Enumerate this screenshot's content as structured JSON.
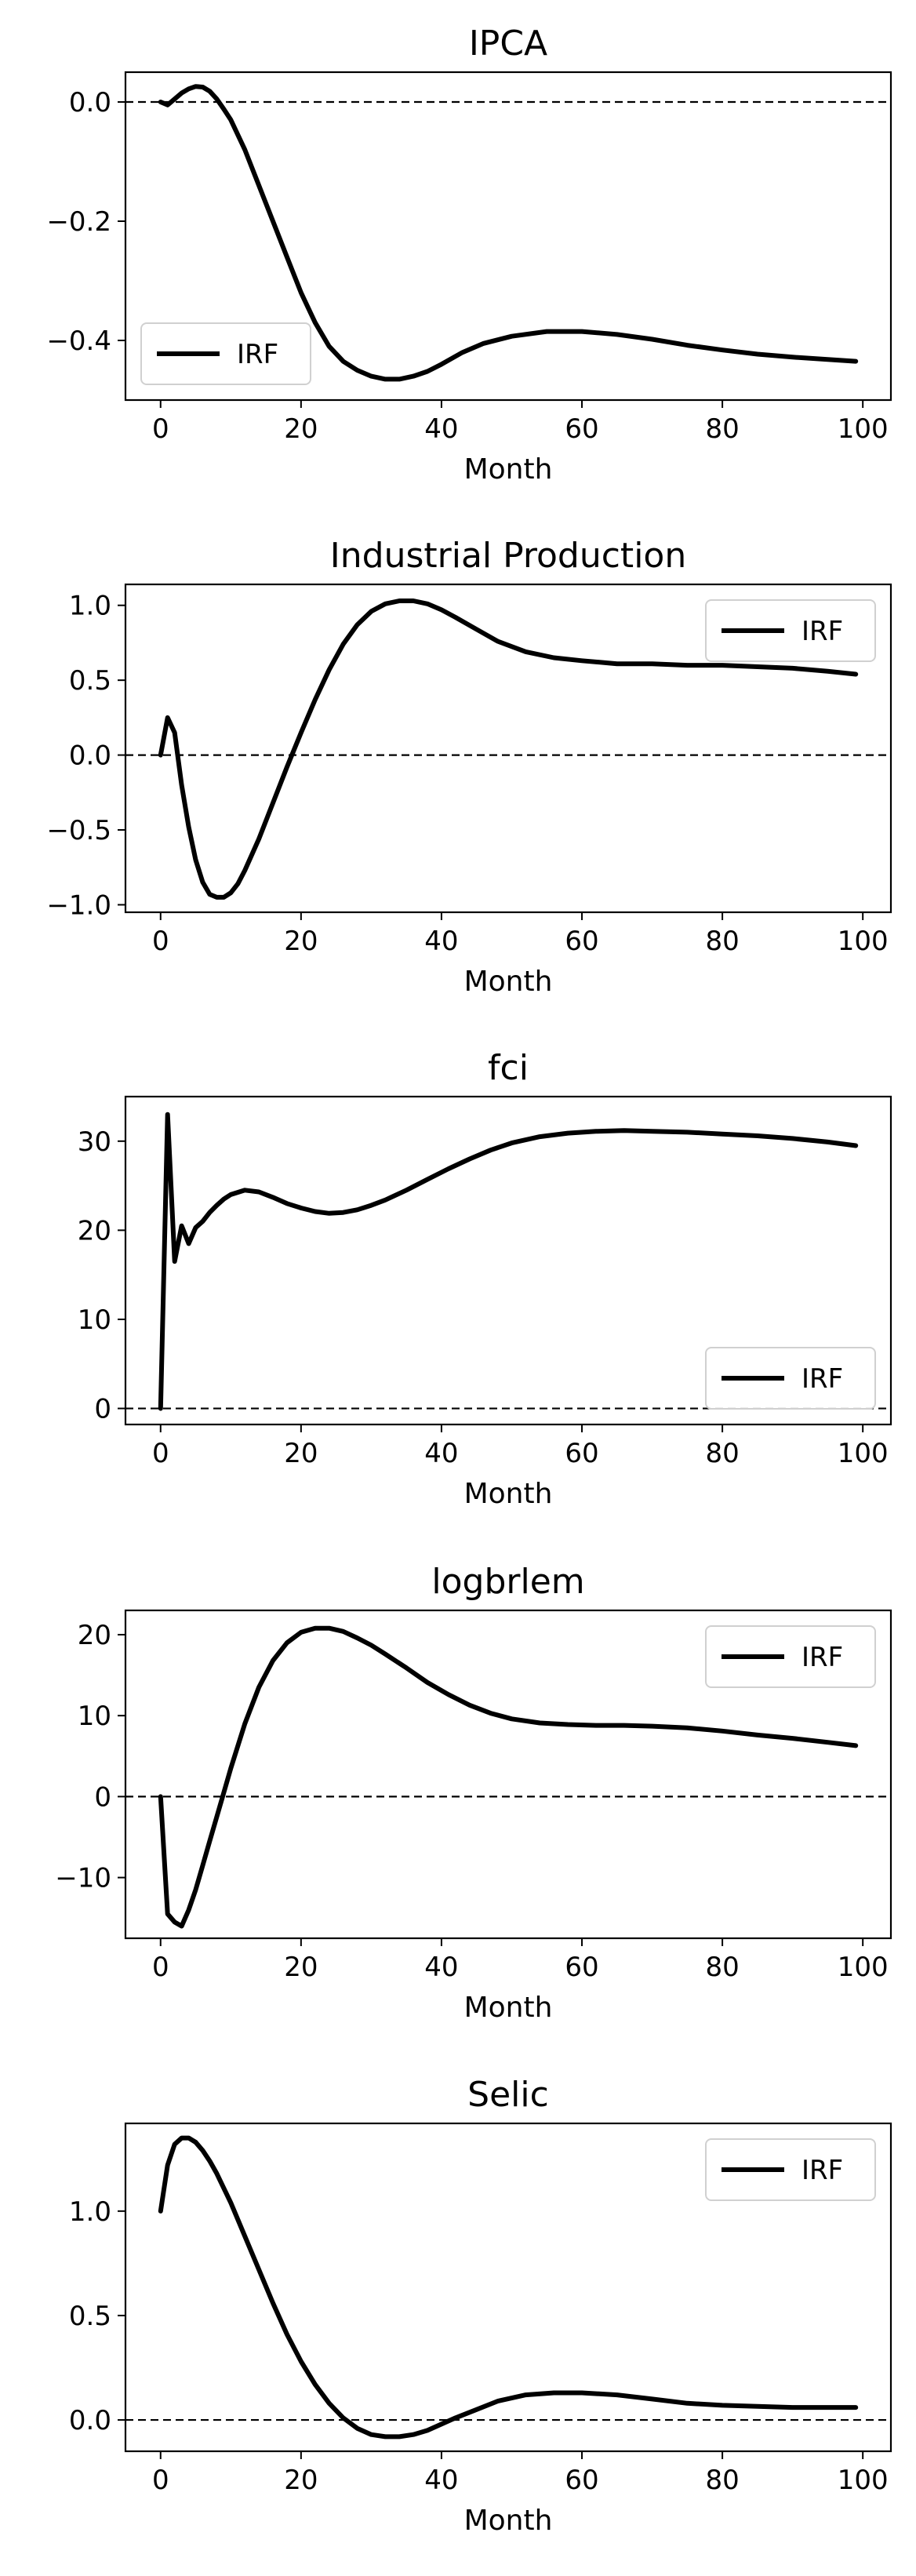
{
  "chart_data": [
    {
      "type": "line",
      "title": "IPCA",
      "xlabel": "Month",
      "ylabel": "",
      "xlim": [
        -5,
        104
      ],
      "ylim": [
        -0.5,
        0.05
      ],
      "xticks": [
        0,
        20,
        40,
        60,
        80,
        100
      ],
      "yticks": [
        -0.4,
        -0.2,
        0.0
      ],
      "ytick_labels": [
        "−0.4",
        "−0.2",
        "0.0"
      ],
      "grid": false,
      "legend": "lower-left",
      "zero_line": true,
      "series": [
        {
          "name": "IRF",
          "color": "#000000",
          "x": [
            0,
            1,
            2,
            3,
            4,
            5,
            6,
            7,
            8,
            9,
            10,
            12,
            14,
            16,
            18,
            20,
            22,
            24,
            26,
            28,
            30,
            32,
            34,
            36,
            38,
            40,
            43,
            46,
            50,
            55,
            60,
            65,
            70,
            75,
            80,
            85,
            90,
            95,
            99
          ],
          "y": [
            0.0,
            -0.005,
            0.005,
            0.015,
            0.022,
            0.026,
            0.025,
            0.018,
            0.005,
            -0.012,
            -0.03,
            -0.08,
            -0.14,
            -0.2,
            -0.26,
            -0.32,
            -0.37,
            -0.41,
            -0.435,
            -0.45,
            -0.46,
            -0.465,
            -0.465,
            -0.46,
            -0.452,
            -0.44,
            -0.42,
            -0.405,
            -0.393,
            -0.385,
            -0.385,
            -0.39,
            -0.398,
            -0.408,
            -0.416,
            -0.423,
            -0.428,
            -0.432,
            -0.435
          ]
        }
      ]
    },
    {
      "type": "line",
      "title": "Industrial Production",
      "xlabel": "Month",
      "ylabel": "",
      "xlim": [
        -5,
        104
      ],
      "ylim": [
        -1.05,
        1.14
      ],
      "xticks": [
        0,
        20,
        40,
        60,
        80,
        100
      ],
      "yticks": [
        -1.0,
        -0.5,
        0.0,
        0.5,
        1.0
      ],
      "ytick_labels": [
        "−1.0",
        "−0.5",
        "0.0",
        "0.5",
        "1.0"
      ],
      "grid": false,
      "legend": "top-right",
      "zero_line": true,
      "series": [
        {
          "name": "IRF",
          "color": "#000000",
          "x": [
            0,
            1,
            2,
            3,
            4,
            5,
            6,
            7,
            8,
            9,
            10,
            11,
            12,
            14,
            16,
            18,
            20,
            22,
            24,
            26,
            28,
            30,
            32,
            34,
            36,
            38,
            40,
            42,
            45,
            48,
            52,
            56,
            60,
            65,
            70,
            75,
            80,
            85,
            90,
            95,
            99
          ],
          "y": [
            0.0,
            0.25,
            0.15,
            -0.2,
            -0.48,
            -0.7,
            -0.85,
            -0.93,
            -0.95,
            -0.95,
            -0.92,
            -0.86,
            -0.77,
            -0.56,
            -0.32,
            -0.08,
            0.15,
            0.37,
            0.57,
            0.74,
            0.87,
            0.96,
            1.01,
            1.03,
            1.03,
            1.01,
            0.97,
            0.92,
            0.84,
            0.76,
            0.69,
            0.65,
            0.63,
            0.61,
            0.61,
            0.6,
            0.6,
            0.59,
            0.58,
            0.56,
            0.54
          ]
        }
      ]
    },
    {
      "type": "line",
      "title": "fci",
      "xlabel": "Month",
      "ylabel": "",
      "xlim": [
        -5,
        104
      ],
      "ylim": [
        -1.8,
        35.0
      ],
      "xticks": [
        0,
        20,
        40,
        60,
        80,
        100
      ],
      "yticks": [
        0,
        10,
        20,
        30
      ],
      "ytick_labels": [
        "0",
        "10",
        "20",
        "30"
      ],
      "grid": false,
      "legend": "bottom-right",
      "zero_line": true,
      "series": [
        {
          "name": "IRF",
          "color": "#000000",
          "x": [
            0,
            1,
            2,
            3,
            4,
            5,
            6,
            7,
            8,
            9,
            10,
            12,
            14,
            16,
            18,
            20,
            22,
            24,
            26,
            28,
            30,
            32,
            35,
            38,
            41,
            44,
            47,
            50,
            54,
            58,
            62,
            66,
            70,
            75,
            80,
            85,
            90,
            95,
            99
          ],
          "y": [
            0.0,
            33.0,
            16.5,
            20.5,
            18.5,
            20.3,
            21.0,
            22.0,
            22.8,
            23.5,
            24.0,
            24.5,
            24.3,
            23.7,
            23.0,
            22.5,
            22.1,
            21.9,
            22.0,
            22.3,
            22.8,
            23.4,
            24.5,
            25.7,
            26.9,
            28.0,
            29.0,
            29.8,
            30.5,
            30.9,
            31.1,
            31.2,
            31.1,
            31.0,
            30.8,
            30.6,
            30.3,
            29.9,
            29.5
          ]
        }
      ]
    },
    {
      "type": "line",
      "title": "logbrlem",
      "xlabel": "Month",
      "ylabel": "",
      "xlim": [
        -5,
        104
      ],
      "ylim": [
        -17.5,
        23.0
      ],
      "xticks": [
        0,
        20,
        40,
        60,
        80,
        100
      ],
      "yticks": [
        -10,
        0,
        10,
        20
      ],
      "ytick_labels": [
        "−10",
        "0",
        "10",
        "20"
      ],
      "grid": false,
      "legend": "top-right",
      "zero_line": true,
      "series": [
        {
          "name": "IRF",
          "color": "#000000",
          "x": [
            0,
            1,
            2,
            3,
            4,
            5,
            6,
            7,
            8,
            9,
            10,
            12,
            14,
            16,
            18,
            20,
            22,
            24,
            26,
            28,
            30,
            32,
            35,
            38,
            41,
            44,
            47,
            50,
            54,
            58,
            62,
            66,
            70,
            75,
            80,
            85,
            90,
            95,
            99
          ],
          "y": [
            0.0,
            -14.5,
            -15.5,
            -16.0,
            -14.0,
            -11.5,
            -8.5,
            -5.5,
            -2.5,
            0.5,
            3.5,
            9.0,
            13.5,
            16.8,
            19.0,
            20.3,
            20.8,
            20.8,
            20.4,
            19.6,
            18.7,
            17.6,
            15.9,
            14.1,
            12.6,
            11.3,
            10.3,
            9.6,
            9.1,
            8.9,
            8.8,
            8.8,
            8.7,
            8.5,
            8.1,
            7.6,
            7.2,
            6.7,
            6.3
          ]
        }
      ]
    },
    {
      "type": "line",
      "title": "Selic",
      "xlabel": "Month",
      "ylabel": "",
      "xlim": [
        -5,
        104
      ],
      "ylim": [
        -0.15,
        1.42
      ],
      "xticks": [
        0,
        20,
        40,
        60,
        80,
        100
      ],
      "yticks": [
        0.0,
        0.5,
        1.0
      ],
      "ytick_labels": [
        "0.0",
        "0.5",
        "1.0"
      ],
      "grid": false,
      "legend": "top-right",
      "zero_line": true,
      "series": [
        {
          "name": "IRF",
          "color": "#000000",
          "x": [
            0,
            1,
            2,
            3,
            4,
            5,
            6,
            7,
            8,
            10,
            12,
            14,
            16,
            18,
            20,
            22,
            24,
            26,
            28,
            30,
            32,
            34,
            36,
            38,
            40,
            42,
            45,
            48,
            52,
            56,
            60,
            65,
            70,
            75,
            80,
            85,
            90,
            95,
            99
          ],
          "y": [
            1.0,
            1.22,
            1.32,
            1.35,
            1.35,
            1.33,
            1.29,
            1.24,
            1.18,
            1.04,
            0.88,
            0.72,
            0.56,
            0.41,
            0.28,
            0.17,
            0.08,
            0.01,
            -0.04,
            -0.07,
            -0.08,
            -0.08,
            -0.07,
            -0.05,
            -0.02,
            0.01,
            0.05,
            0.09,
            0.12,
            0.13,
            0.13,
            0.12,
            0.1,
            0.08,
            0.07,
            0.065,
            0.06,
            0.06,
            0.06
          ]
        }
      ]
    }
  ]
}
